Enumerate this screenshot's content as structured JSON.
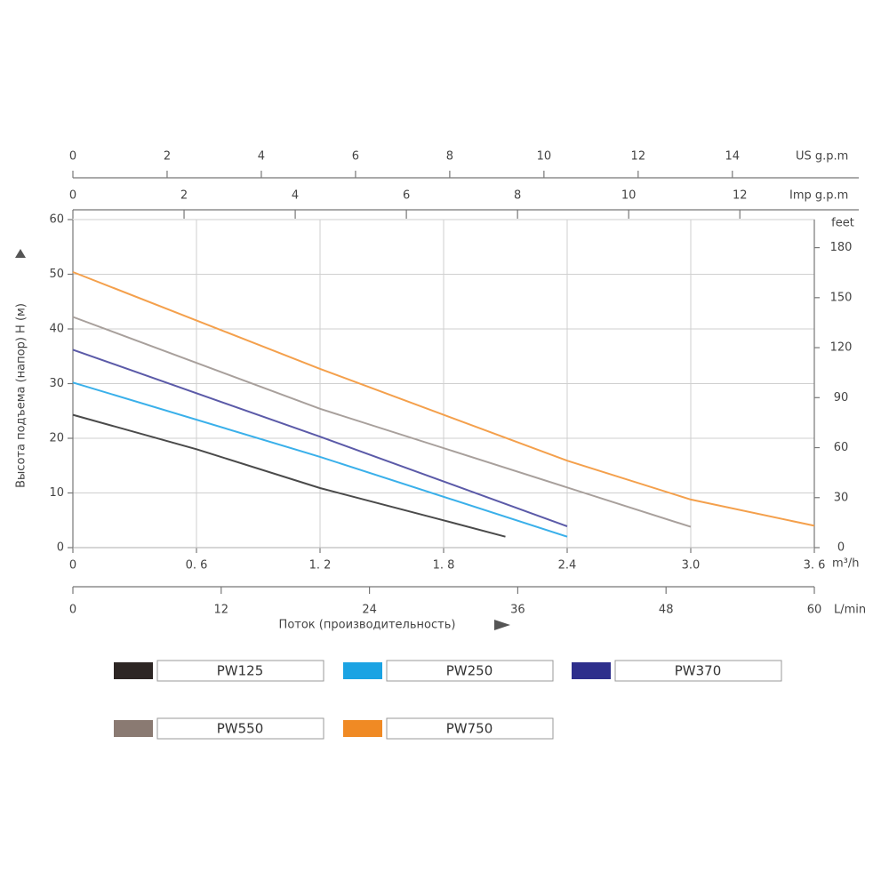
{
  "chart_data": {
    "type": "line",
    "y_label": "Высота подъема (напор) H (м)",
    "x_label": "Поток (производительность)",
    "x_unit": "m³/h",
    "xlim": [
      0,
      3.6
    ],
    "xticks": [
      0,
      {
        "value": 0.6,
        "label": "0. 6"
      },
      {
        "value": 1.2,
        "label": "1. 2"
      },
      {
        "value": 1.8,
        "label": "1. 8"
      },
      2.4,
      {
        "value": 3,
        "label": "3.0"
      },
      {
        "value": 3.6,
        "label": "3. 6"
      }
    ],
    "ylim": [
      0,
      60
    ],
    "yticks": [
      0,
      10,
      20,
      30,
      40,
      50,
      60
    ],
    "y2_unit": "feet",
    "y2lim": [
      0,
      196.85
    ],
    "y2ticks": [
      0,
      30,
      60,
      90,
      120,
      150,
      180
    ],
    "us_gpm_axis": {
      "unit": "US g.p.m",
      "lim": [
        0,
        15.74
      ],
      "ticks": [
        0,
        2,
        4,
        6,
        8,
        10,
        12,
        14
      ]
    },
    "imp_gpm_axis": {
      "unit": "Imp g.p.m",
      "lim": [
        0,
        13.34
      ],
      "ticks": [
        0,
        2,
        4,
        6,
        8,
        10,
        12
      ]
    },
    "lmin_axis": {
      "unit": "L/min",
      "lim": [
        0,
        60
      ],
      "ticks": [
        0,
        12,
        24,
        36,
        48,
        60
      ]
    },
    "grid": true,
    "series": [
      {
        "name": "PW125",
        "color": "#2d2624",
        "line_color": "#4a4a4a",
        "x": [
          0,
          0.6,
          1.2,
          1.8,
          2.1
        ],
        "values": [
          24.3,
          18.0,
          10.9,
          5.0,
          2.0
        ]
      },
      {
        "name": "PW250",
        "color": "#1ba3e3",
        "line_color": "#3ab0ea",
        "x": [
          0,
          1.2,
          2.4
        ],
        "values": [
          30.2,
          16.6,
          2.0
        ]
      },
      {
        "name": "PW370",
        "color": "#2e2f8c",
        "line_color": "#5b5aa8",
        "x": [
          0,
          1.2,
          2.4
        ],
        "values": [
          36.2,
          20.3,
          3.9
        ]
      },
      {
        "name": "PW550",
        "color": "#8a7a72",
        "line_color": "#a8a09c",
        "x": [
          0,
          1.2,
          3.0
        ],
        "values": [
          42.2,
          25.4,
          3.8
        ]
      },
      {
        "name": "PW750",
        "color": "#f08a24",
        "line_color": "#f4a04c",
        "x": [
          0,
          1.2,
          2.4,
          3.0,
          3.6
        ],
        "values": [
          50.4,
          32.7,
          15.9,
          8.8,
          4.0
        ]
      }
    ]
  }
}
